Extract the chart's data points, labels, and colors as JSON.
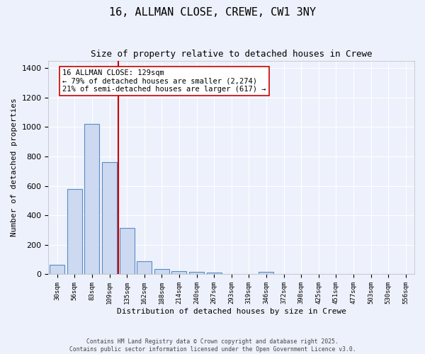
{
  "title1": "16, ALLMAN CLOSE, CREWE, CW1 3NY",
  "title2": "Size of property relative to detached houses in Crewe",
  "xlabel": "Distribution of detached houses by size in Crewe",
  "ylabel": "Number of detached properties",
  "bin_labels": [
    "30sqm",
    "56sqm",
    "83sqm",
    "109sqm",
    "135sqm",
    "162sqm",
    "188sqm",
    "214sqm",
    "240sqm",
    "267sqm",
    "293sqm",
    "319sqm",
    "346sqm",
    "372sqm",
    "398sqm",
    "425sqm",
    "451sqm",
    "477sqm",
    "503sqm",
    "530sqm",
    "556sqm"
  ],
  "bar_values": [
    65,
    580,
    1020,
    760,
    315,
    90,
    35,
    20,
    15,
    10,
    0,
    0,
    15,
    0,
    0,
    0,
    0,
    0,
    0,
    0,
    0
  ],
  "bar_color": "#ccd9f0",
  "bar_edge_color": "#5b8ac4",
  "red_line_index": 4,
  "red_line_color": "#cc0000",
  "annotation_text": "16 ALLMAN CLOSE: 129sqm\n← 79% of detached houses are smaller (2,274)\n21% of semi-detached houses are larger (617) →",
  "annotation_box_color": "#ffffff",
  "annotation_box_edge": "#cc0000",
  "ylim": [
    0,
    1450
  ],
  "yticks": [
    0,
    200,
    400,
    600,
    800,
    1000,
    1200,
    1400
  ],
  "footer1": "Contains HM Land Registry data © Crown copyright and database right 2025.",
  "footer2": "Contains public sector information licensed under the Open Government Licence v3.0.",
  "bg_color": "#edf1fb",
  "grid_color": "#ffffff",
  "title1_fontsize": 11,
  "title2_fontsize": 9
}
